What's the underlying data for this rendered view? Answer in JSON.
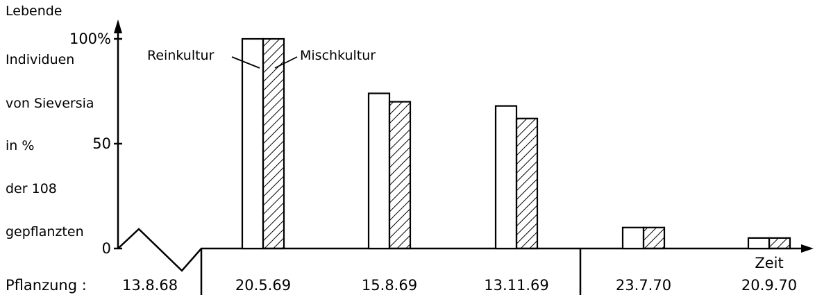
{
  "chart_data": {
    "type": "bar",
    "ylabel_lines": [
      "Lebende",
      "Individuen",
      "von Sieversia",
      "in %",
      "der 108",
      "gepflanzten"
    ],
    "xlabel": "Zeit",
    "x_prefix": "Pflanzung :",
    "planting_date": "13.8.68",
    "categories": [
      "20.5.69",
      "15.8.69",
      "13.11.69",
      "23.7.70",
      "20.9.70"
    ],
    "y_ticks": [
      {
        "value": 100,
        "label": "100%"
      },
      {
        "value": 50,
        "label": "50"
      },
      {
        "value": 0,
        "label": "0"
      }
    ],
    "ylim": [
      0,
      100
    ],
    "series": [
      {
        "name": "Reinkultur",
        "values": [
          100,
          74,
          68,
          10,
          5
        ],
        "pattern": "none"
      },
      {
        "name": "Mischkultur",
        "values": [
          100,
          70,
          62,
          10,
          5
        ],
        "pattern": "hatch"
      }
    ],
    "grid": false,
    "legend": "labels-on-first-bars"
  }
}
